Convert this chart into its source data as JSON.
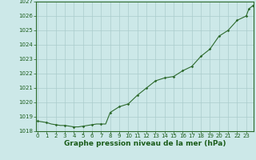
{
  "x": [
    0,
    0.5,
    1,
    1.5,
    2,
    2.5,
    3,
    3.5,
    4,
    4.5,
    5,
    5.5,
    6,
    6.5,
    7,
    7.5,
    8,
    8.5,
    9,
    9.5,
    10,
    10.5,
    11,
    11.5,
    12,
    12.5,
    13,
    13.5,
    14,
    14.5,
    15,
    15.5,
    16,
    16.5,
    17,
    17.5,
    18,
    18.5,
    19,
    19.5,
    20,
    20.5,
    21,
    21.5,
    22,
    22.5,
    23,
    23.3,
    23.7
  ],
  "y": [
    1018.7,
    1018.65,
    1018.6,
    1018.5,
    1018.45,
    1018.4,
    1018.4,
    1018.35,
    1018.3,
    1018.3,
    1018.35,
    1018.4,
    1018.45,
    1018.5,
    1018.5,
    1018.5,
    1019.3,
    1019.5,
    1019.7,
    1019.8,
    1019.9,
    1020.2,
    1020.5,
    1020.75,
    1021.0,
    1021.25,
    1021.5,
    1021.6,
    1021.7,
    1021.75,
    1021.8,
    1022.0,
    1022.2,
    1022.35,
    1022.5,
    1022.85,
    1023.2,
    1023.45,
    1023.7,
    1024.15,
    1024.6,
    1024.8,
    1025.0,
    1025.35,
    1025.7,
    1025.85,
    1026.0,
    1026.5,
    1026.7
  ],
  "marker_x": [
    0,
    1,
    2,
    3,
    4,
    5,
    6,
    7,
    8,
    9,
    10,
    11,
    12,
    13,
    14,
    15,
    16,
    17,
    18,
    19,
    20,
    21,
    22,
    23,
    23.3,
    23.7
  ],
  "marker_y": [
    1018.7,
    1018.6,
    1018.45,
    1018.4,
    1018.3,
    1018.35,
    1018.45,
    1018.5,
    1019.3,
    1019.7,
    1019.9,
    1020.5,
    1021.0,
    1021.5,
    1021.7,
    1021.8,
    1022.2,
    1022.5,
    1023.2,
    1023.7,
    1024.6,
    1025.0,
    1025.7,
    1026.0,
    1026.5,
    1026.7
  ],
  "ylim": [
    1018,
    1027
  ],
  "xlim_min": -0.2,
  "xlim_max": 23.8,
  "yticks": [
    1018,
    1019,
    1020,
    1021,
    1022,
    1023,
    1024,
    1025,
    1026,
    1027
  ],
  "xticks": [
    0,
    1,
    2,
    3,
    4,
    5,
    6,
    7,
    8,
    9,
    10,
    11,
    12,
    13,
    14,
    15,
    16,
    17,
    18,
    19,
    20,
    21,
    22,
    23
  ],
  "xlabel": "Graphe pression niveau de la mer (hPa)",
  "line_color": "#2d6a2d",
  "marker_color": "#2d6a2d",
  "bg_color": "#cce8e8",
  "grid_color": "#aacccc",
  "border_color": "#2d6a2d",
  "xlabel_color": "#1a5c1a",
  "tick_color": "#1a5c1a",
  "tick_fontsize": 5.0,
  "xlabel_fontsize": 6.5,
  "linewidth": 0.8,
  "markersize": 1.8
}
